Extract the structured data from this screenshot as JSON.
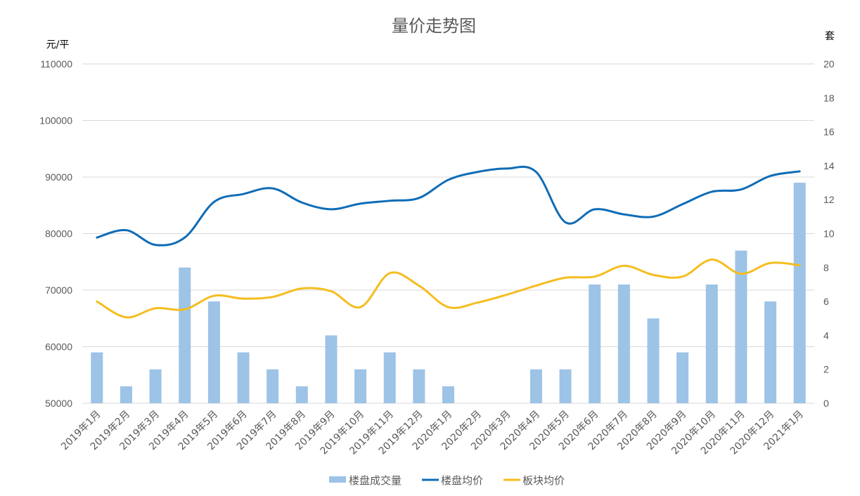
{
  "chart_data": {
    "type": "bar+line",
    "title": "量价走势图",
    "ylabel_left": "元/平",
    "ylabel_right": "套",
    "xlabel": "",
    "ylim_left": [
      50000,
      110000
    ],
    "ylim_right": [
      0,
      20
    ],
    "left_ticks": [
      "110000",
      "100000",
      "90000",
      "80000",
      "70000",
      "60000",
      "50000"
    ],
    "right_ticks": [
      "20",
      "18",
      "16",
      "14",
      "12",
      "10",
      "8",
      "6",
      "4",
      "2",
      "0"
    ],
    "grid": true,
    "legend_position": "bottom",
    "categories": [
      "2019年1月",
      "2019年2月",
      "2019年3月",
      "2019年4月",
      "2019年5月",
      "2019年6月",
      "2019年7月",
      "2019年8月",
      "2019年9月",
      "2019年10月",
      "2019年11月",
      "2019年12月",
      "2020年1月",
      "2020年2月",
      "2020年3月",
      "2020年4月",
      "2020年5月",
      "2020年6月",
      "2020年7月",
      "2020年8月",
      "2020年9月",
      "2020年10月",
      "2020年11月",
      "2020年12月",
      "2021年1月"
    ],
    "series": [
      {
        "name": "楼盘成交量",
        "type": "bar",
        "axis": "right",
        "color": "#9dc3e6",
        "values": [
          3,
          1,
          2,
          8,
          6,
          3,
          2,
          1,
          4,
          2,
          3,
          2,
          1,
          0,
          0,
          2,
          2,
          7,
          7,
          5,
          3,
          7,
          9,
          6,
          13
        ]
      },
      {
        "name": "楼盘均价",
        "type": "line",
        "axis": "left",
        "color": "#0f6cb6",
        "smooth": true,
        "values": [
          79300,
          80600,
          78000,
          79300,
          85600,
          87000,
          88000,
          85500,
          84300,
          85300,
          85800,
          86300,
          89500,
          90900,
          91500,
          90900,
          82000,
          84300,
          83400,
          83000,
          85200,
          87400,
          87800,
          90200,
          91000
        ]
      },
      {
        "name": "板块均价",
        "type": "line",
        "axis": "left",
        "color": "#f5bd1f",
        "smooth": true,
        "values": [
          68000,
          65200,
          66800,
          66600,
          69000,
          68500,
          68800,
          70300,
          69800,
          67000,
          73000,
          70800,
          67000,
          67800,
          69200,
          70800,
          72200,
          72400,
          74300,
          72700,
          72400,
          75400,
          72900,
          74800,
          74400
        ]
      }
    ]
  },
  "legend": [
    {
      "label": "楼盘成交量",
      "kind": "bar",
      "color": "#9dc3e6"
    },
    {
      "label": "楼盘均价",
      "kind": "line",
      "color": "#0f6cb6"
    },
    {
      "label": "板块均价",
      "kind": "line",
      "color": "#f5bd1f"
    }
  ]
}
